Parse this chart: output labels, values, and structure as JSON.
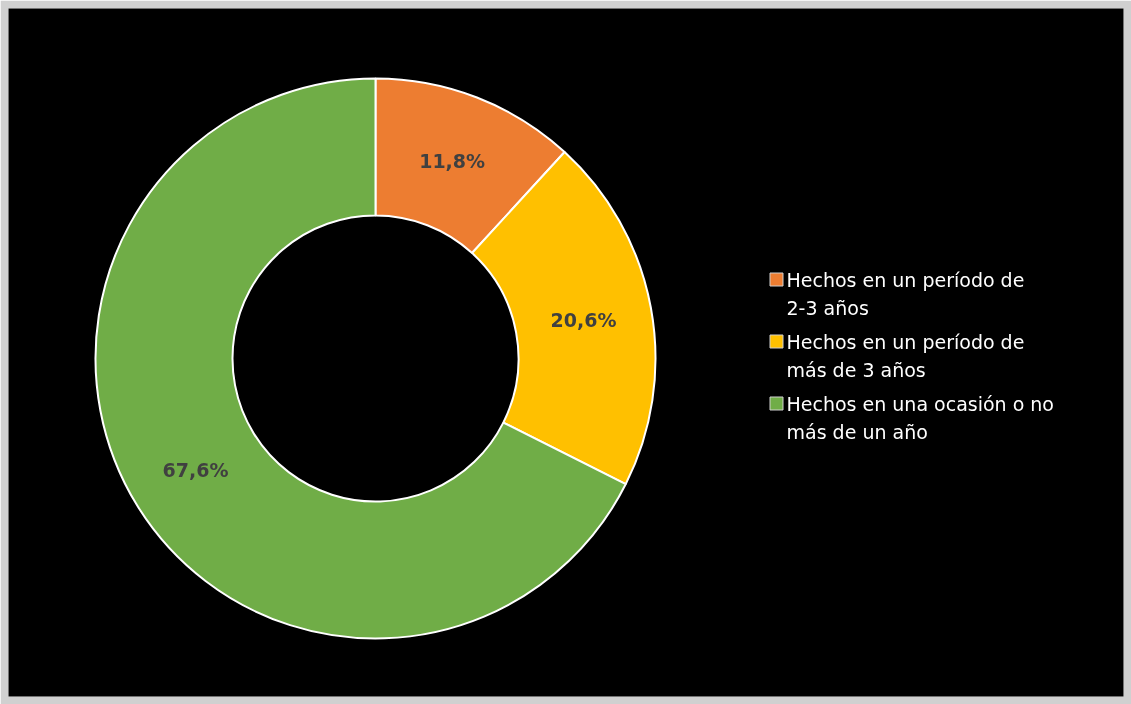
{
  "chart_data": {
    "type": "donut",
    "categories": [
      "Hechos en un período de 2-3 años",
      "Hechos en un período de más de 3 años",
      "Hechos en una ocasión o no más de un año"
    ],
    "values": [
      11.8,
      20.6,
      67.6
    ],
    "colors": [
      "#ed7d31",
      "#ffc000",
      "#70ad47"
    ],
    "value_labels": [
      "11,8%",
      "20,6%",
      "67,6%"
    ],
    "legend": "right"
  }
}
